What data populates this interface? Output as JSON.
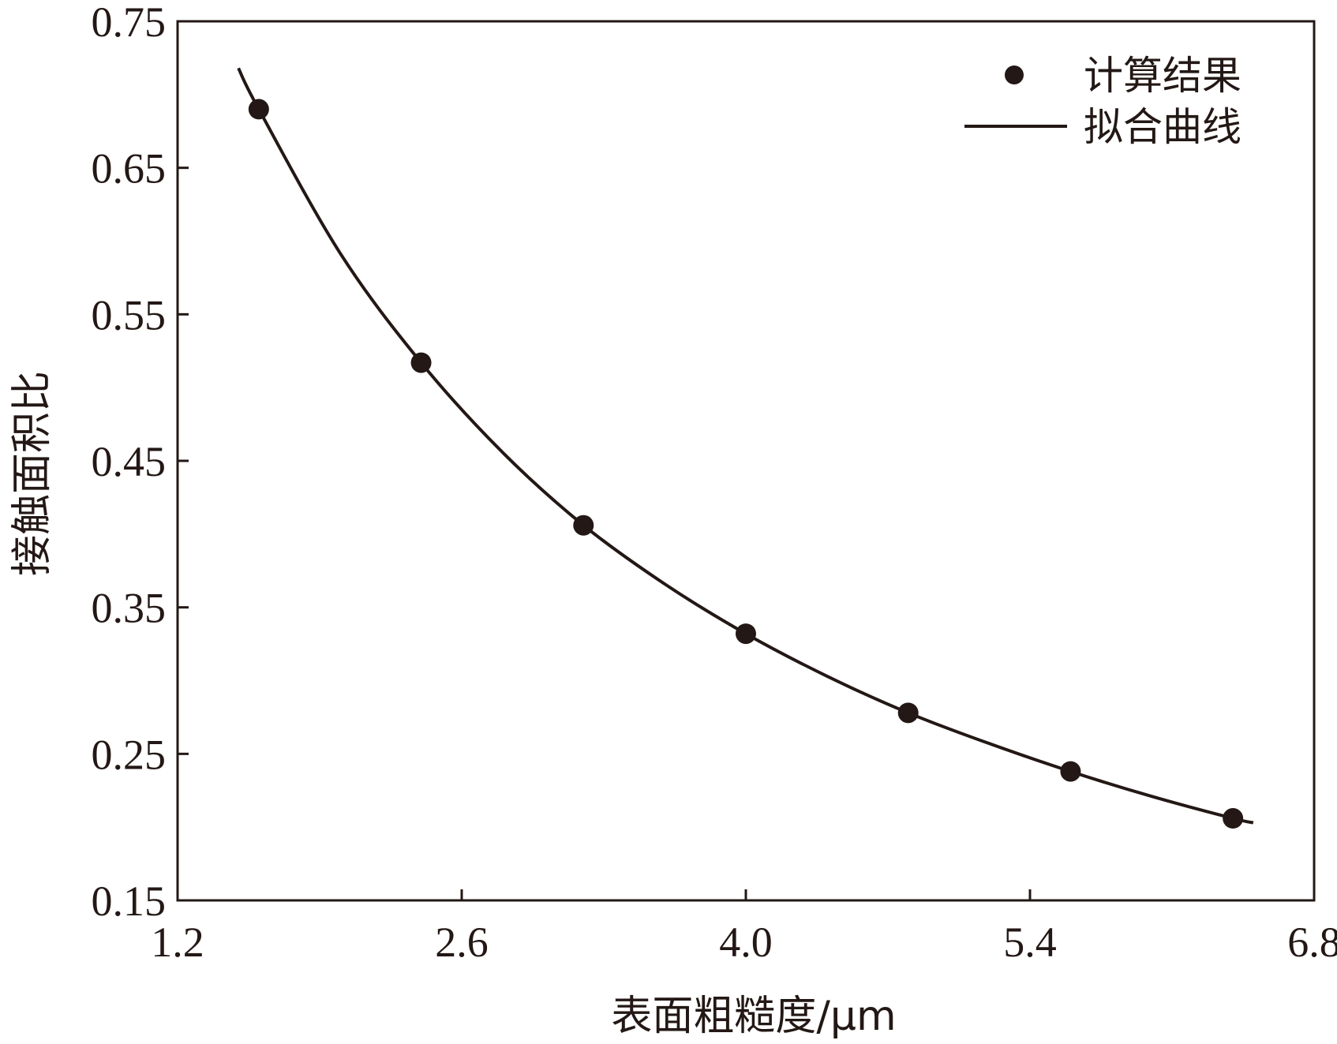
{
  "chart_data": {
    "type": "scatter",
    "xlabel": "表面粗糙度/μm",
    "ylabel": "接触面积比",
    "xlim": [
      1.2,
      6.8
    ],
    "ylim": [
      0.15,
      0.75
    ],
    "xticks": [
      "1.2",
      "2.6",
      "4.0",
      "5.4",
      "6.8"
    ],
    "yticks": [
      "0.15",
      "0.25",
      "0.35",
      "0.45",
      "0.55",
      "0.65",
      "0.75"
    ],
    "grid": false,
    "legend": "top-right",
    "series": [
      {
        "name": "计算结果",
        "kind": "scatter",
        "x": [
          1.6,
          2.4,
          3.2,
          4.0,
          4.8,
          5.6,
          6.4
        ],
        "y": [
          0.69,
          0.517,
          0.406,
          0.332,
          0.278,
          0.238,
          0.206
        ]
      },
      {
        "name": "拟合曲线",
        "kind": "line",
        "x": [
          1.5,
          1.6,
          2.0,
          2.4,
          2.8,
          3.2,
          3.6,
          4.0,
          4.4,
          4.8,
          5.2,
          5.6,
          6.0,
          6.4,
          6.5
        ],
        "y": [
          0.718,
          0.69,
          0.592,
          0.517,
          0.456,
          0.406,
          0.366,
          0.332,
          0.303,
          0.278,
          0.257,
          0.238,
          0.221,
          0.206,
          0.203
        ]
      }
    ],
    "colors": {
      "marks": "#231815",
      "axis": "#231815"
    }
  }
}
